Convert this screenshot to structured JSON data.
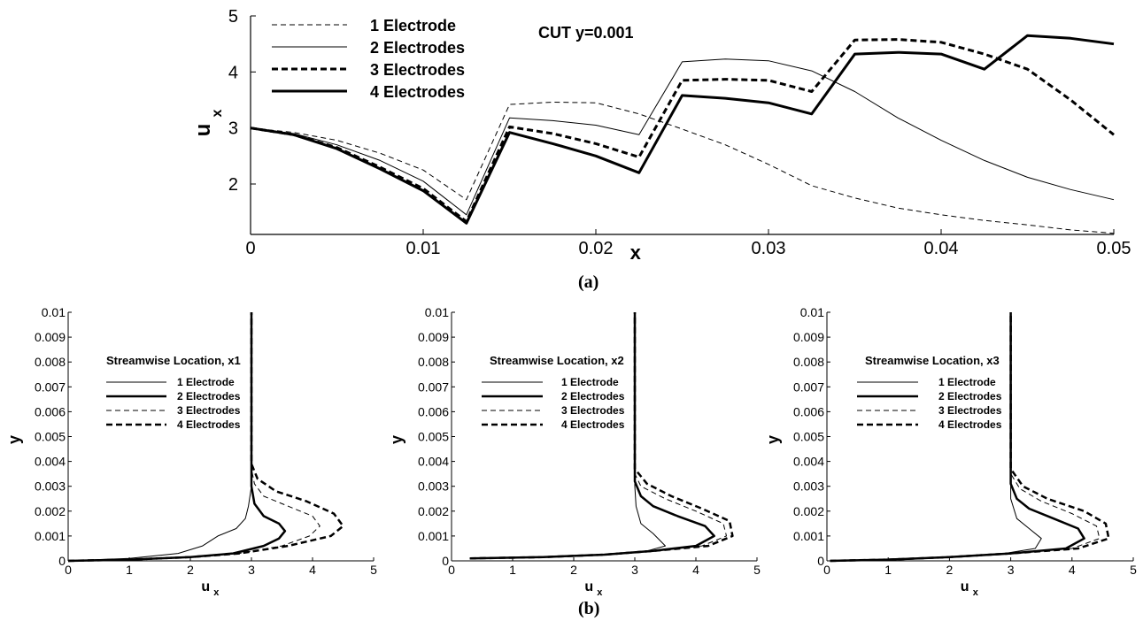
{
  "captions": {
    "a": "(a)",
    "b": "(b)"
  },
  "chart_data": [
    {
      "type": "line",
      "annotation": "CUT y=0.001",
      "xlabel": "x",
      "ylabel": "u",
      "ylabel_sub": "x",
      "xlim": [
        0,
        0.05
      ],
      "ylim": [
        1.1,
        5
      ],
      "xticks": [
        "0",
        "0.01",
        "0.02",
        "0.03",
        "0.04",
        "0.05"
      ],
      "yticks": [
        "2",
        "3",
        "4",
        "5"
      ],
      "legend_position": "top-left",
      "series": [
        {
          "name": "1 Electrode",
          "style": "thin-dashed",
          "x": [
            0,
            0.0025,
            0.005,
            0.0075,
            0.01,
            0.0125,
            0.015,
            0.0175,
            0.02,
            0.0225,
            0.025,
            0.0275,
            0.03,
            0.0325,
            0.035,
            0.0375,
            0.04,
            0.0425,
            0.045,
            0.0475,
            0.05
          ],
          "y": [
            3.0,
            2.92,
            2.78,
            2.55,
            2.25,
            1.72,
            3.42,
            3.46,
            3.45,
            3.25,
            2.98,
            2.7,
            2.35,
            1.97,
            1.75,
            1.57,
            1.45,
            1.35,
            1.27,
            1.18,
            1.12
          ]
        },
        {
          "name": "2 Electrodes",
          "style": "thin-solid",
          "x": [
            0,
            0.0025,
            0.005,
            0.0075,
            0.01,
            0.0125,
            0.015,
            0.0175,
            0.02,
            0.0225,
            0.025,
            0.0275,
            0.03,
            0.0325,
            0.035,
            0.0375,
            0.04,
            0.0425,
            0.045,
            0.0475,
            0.05
          ],
          "y": [
            3.0,
            2.9,
            2.7,
            2.42,
            2.05,
            1.45,
            3.18,
            3.13,
            3.05,
            2.88,
            4.18,
            4.23,
            4.2,
            4.02,
            3.65,
            3.18,
            2.78,
            2.42,
            2.12,
            1.9,
            1.72
          ]
        },
        {
          "name": "3 Electrodes",
          "style": "thick-dashed",
          "x": [
            0,
            0.0025,
            0.005,
            0.0075,
            0.01,
            0.0125,
            0.015,
            0.0175,
            0.02,
            0.0225,
            0.025,
            0.0275,
            0.03,
            0.0325,
            0.035,
            0.0375,
            0.04,
            0.0425,
            0.045,
            0.0475,
            0.05
          ],
          "y": [
            3.0,
            2.88,
            2.65,
            2.3,
            1.92,
            1.33,
            3.02,
            2.9,
            2.72,
            2.48,
            3.85,
            3.87,
            3.85,
            3.65,
            4.57,
            4.58,
            4.53,
            4.32,
            4.05,
            3.5,
            2.88
          ]
        },
        {
          "name": "4 Electrodes",
          "style": "thick-solid",
          "x": [
            0,
            0.0025,
            0.005,
            0.0075,
            0.01,
            0.0125,
            0.015,
            0.0175,
            0.02,
            0.0225,
            0.025,
            0.0275,
            0.03,
            0.0325,
            0.035,
            0.0375,
            0.04,
            0.0425,
            0.045,
            0.0475,
            0.05
          ],
          "y": [
            3.0,
            2.88,
            2.63,
            2.27,
            1.88,
            1.3,
            2.92,
            2.72,
            2.5,
            2.2,
            3.58,
            3.53,
            3.45,
            3.25,
            4.32,
            4.35,
            4.32,
            4.05,
            4.65,
            4.6,
            4.5
          ]
        }
      ]
    },
    {
      "type": "line",
      "title": "Streamwise Location, x1",
      "xlabel": "u",
      "xlabel_sub": "x",
      "ylabel": "y",
      "xlim": [
        0,
        5
      ],
      "ylim": [
        0,
        0.01
      ],
      "xticks": [
        "0",
        "1",
        "2",
        "3",
        "4",
        "5"
      ],
      "yticks": [
        "0",
        "0.001",
        "0.002",
        "0.003",
        "0.004",
        "0.005",
        "0.006",
        "0.007",
        "0.008",
        "0.009",
        "0.01"
      ],
      "series": [
        {
          "name": "1 Electrode",
          "style": "thin-solid",
          "x": [
            0.0,
            1.0,
            1.8,
            2.2,
            2.45,
            2.75,
            2.9,
            2.95,
            3.0,
            3.0
          ],
          "y": [
            0.0,
            0.0001,
            0.0003,
            0.0006,
            0.001,
            0.0013,
            0.0017,
            0.0022,
            0.003,
            0.01
          ]
        },
        {
          "name": "2 Electrodes",
          "style": "thick-solid",
          "x": [
            0.0,
            1.0,
            2.0,
            2.7,
            3.2,
            3.45,
            3.55,
            3.45,
            3.2,
            3.05,
            3.0,
            3.0
          ],
          "y": [
            0.0,
            5e-05,
            0.00015,
            0.0003,
            0.0006,
            0.0009,
            0.0012,
            0.0015,
            0.0018,
            0.0023,
            0.003,
            0.01
          ]
        },
        {
          "name": "3 Electrodes",
          "style": "thin-dashed",
          "x": [
            0.0,
            1.0,
            2.0,
            2.8,
            3.5,
            3.95,
            4.12,
            4.0,
            3.6,
            3.2,
            3.05,
            3.0,
            3.0
          ],
          "y": [
            0.0,
            5e-05,
            0.00015,
            0.0003,
            0.0006,
            0.001,
            0.0014,
            0.0018,
            0.0022,
            0.0026,
            0.0031,
            0.0037,
            0.01
          ]
        },
        {
          "name": "4 Electrodes",
          "style": "thick-dashed",
          "x": [
            0.0,
            1.0,
            2.0,
            2.8,
            3.6,
            4.3,
            4.5,
            4.35,
            3.9,
            3.4,
            3.1,
            3.0,
            3.0
          ],
          "y": [
            0.0,
            5e-05,
            0.00015,
            0.0003,
            0.0006,
            0.001,
            0.0014,
            0.0019,
            0.0024,
            0.0028,
            0.0033,
            0.0039,
            0.01
          ]
        }
      ]
    },
    {
      "type": "line",
      "title": "Streamwise Location, x2",
      "xlabel": "u",
      "xlabel_sub": "x",
      "ylabel": "y",
      "xlim": [
        0,
        5
      ],
      "ylim": [
        0,
        0.01
      ],
      "xticks": [
        "0",
        "1",
        "2",
        "3",
        "4",
        "5"
      ],
      "yticks": [
        "0",
        "0.001",
        "0.002",
        "0.003",
        "0.004",
        "0.005",
        "0.006",
        "0.007",
        "0.008",
        "0.009",
        "0.01"
      ],
      "series": [
        {
          "name": "1 Electrode",
          "style": "thin-solid",
          "x": [
            0.3,
            1.5,
            2.5,
            3.2,
            3.5,
            3.3,
            3.1,
            3.02,
            3.0,
            3.0
          ],
          "y": [
            0.0001,
            0.00015,
            0.00025,
            0.0004,
            0.0006,
            0.0011,
            0.0015,
            0.0022,
            0.003,
            0.01
          ]
        },
        {
          "name": "2 Electrodes",
          "style": "thick-solid",
          "x": [
            0.3,
            1.5,
            2.5,
            3.3,
            4.0,
            4.3,
            4.15,
            3.7,
            3.3,
            3.1,
            3.0,
            3.0
          ],
          "y": [
            0.0001,
            0.00015,
            0.00025,
            0.0004,
            0.0006,
            0.001,
            0.0014,
            0.0018,
            0.0022,
            0.0026,
            0.0032,
            0.01
          ]
        },
        {
          "name": "3 Electrodes",
          "style": "thin-dashed",
          "x": [
            0.3,
            1.5,
            2.5,
            3.3,
            4.1,
            4.5,
            4.45,
            4.0,
            3.5,
            3.1,
            3.0,
            3.0
          ],
          "y": [
            0.0001,
            0.00015,
            0.00025,
            0.0004,
            0.0006,
            0.001,
            0.0015,
            0.002,
            0.0025,
            0.003,
            0.0035,
            0.01
          ]
        },
        {
          "name": "4 Electrodes",
          "style": "thick-dashed",
          "x": [
            0.3,
            1.5,
            2.5,
            3.3,
            4.2,
            4.6,
            4.55,
            4.1,
            3.6,
            3.2,
            3.0,
            3.0
          ],
          "y": [
            0.0001,
            0.00015,
            0.00025,
            0.0004,
            0.0006,
            0.001,
            0.0016,
            0.0021,
            0.0026,
            0.0031,
            0.0037,
            0.01
          ]
        }
      ]
    },
    {
      "type": "line",
      "title": "Streamwise Location, x3",
      "xlabel": "u",
      "xlabel_sub": "x",
      "ylabel": "y",
      "xlim": [
        0,
        5
      ],
      "ylim": [
        0,
        0.01
      ],
      "xticks": [
        "0",
        "1",
        "2",
        "3",
        "4",
        "5"
      ],
      "yticks": [
        "0",
        "0.001",
        "0.002",
        "0.003",
        "0.004",
        "0.005",
        "0.006",
        "0.007",
        "0.008",
        "0.009",
        "0.01"
      ],
      "series": [
        {
          "name": "1 Electrode",
          "style": "thin-solid",
          "x": [
            0.05,
            1.0,
            2.0,
            2.9,
            3.4,
            3.5,
            3.3,
            3.1,
            3.0,
            3.0
          ],
          "y": [
            0.0,
            5e-05,
            0.00015,
            0.0003,
            0.0005,
            0.0009,
            0.0013,
            0.0017,
            0.0025,
            0.01
          ]
        },
        {
          "name": "2 Electrodes",
          "style": "thick-solid",
          "x": [
            0.05,
            1.0,
            2.0,
            3.0,
            3.9,
            4.2,
            4.1,
            3.7,
            3.3,
            3.1,
            3.0,
            3.0
          ],
          "y": [
            0.0,
            5e-05,
            0.00015,
            0.0003,
            0.0005,
            0.0009,
            0.0013,
            0.0017,
            0.0021,
            0.0025,
            0.0031,
            0.01
          ]
        },
        {
          "name": "3 Electrodes",
          "style": "thin-dashed",
          "x": [
            0.05,
            1.0,
            2.0,
            3.0,
            4.0,
            4.45,
            4.4,
            4.0,
            3.5,
            3.15,
            3.0,
            3.0
          ],
          "y": [
            0.0,
            5e-05,
            0.00015,
            0.0003,
            0.0005,
            0.0009,
            0.0014,
            0.0019,
            0.0024,
            0.0029,
            0.0035,
            0.01
          ]
        },
        {
          "name": "4 Electrodes",
          "style": "thick-dashed",
          "x": [
            0.05,
            1.0,
            2.0,
            3.0,
            4.1,
            4.6,
            4.55,
            4.2,
            3.6,
            3.2,
            3.0,
            3.0
          ],
          "y": [
            0.0,
            5e-05,
            0.00015,
            0.0003,
            0.0005,
            0.0009,
            0.0015,
            0.002,
            0.0025,
            0.003,
            0.0037,
            0.01
          ]
        }
      ]
    }
  ]
}
